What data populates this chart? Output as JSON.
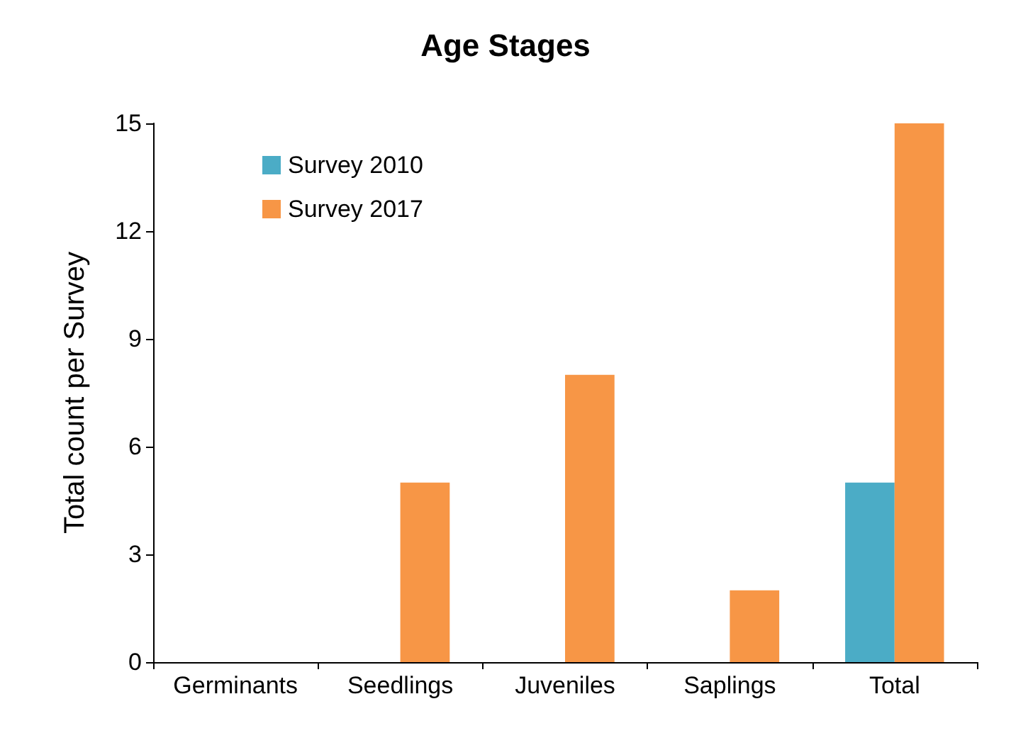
{
  "chart_data": {
    "type": "bar",
    "title": "Age Stages",
    "ylabel": "Total count per Survey",
    "categories": [
      "Germinants",
      "Seedlings",
      "Juveniles",
      "Saplings",
      "Total"
    ],
    "series": [
      {
        "name": "Survey 2010",
        "color": "#4bacc6",
        "values": [
          0,
          0,
          0,
          0,
          5
        ]
      },
      {
        "name": "Survey 2017",
        "color": "#f79646",
        "values": [
          0,
          5,
          8,
          2,
          15
        ]
      }
    ],
    "ylim": [
      0,
      15
    ],
    "yticks": [
      0,
      3,
      6,
      9,
      12,
      15
    ],
    "grid": false,
    "legend": "top left"
  }
}
